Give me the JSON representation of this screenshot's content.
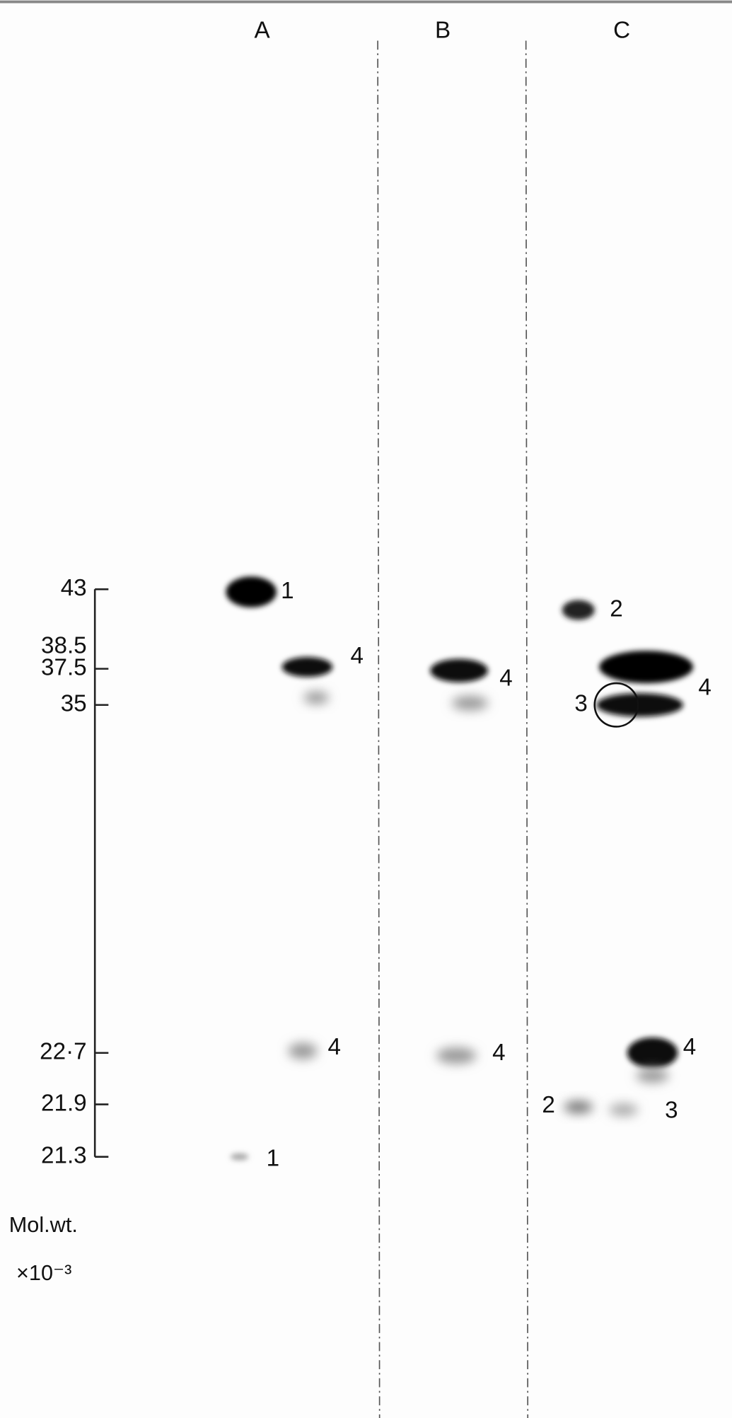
{
  "lanes": [
    "A",
    "B",
    "C"
  ],
  "markers": [
    "43",
    "38.5",
    "37.5",
    "35",
    "22·7",
    "21.9",
    "21.3"
  ],
  "axis_label": "Mol.wt.",
  "axis_unit": "×10⁻³",
  "band_labels": [
    "1",
    "4",
    "4",
    "1",
    "4",
    "4",
    "2",
    "4",
    "3",
    "4",
    "2",
    "3"
  ]
}
